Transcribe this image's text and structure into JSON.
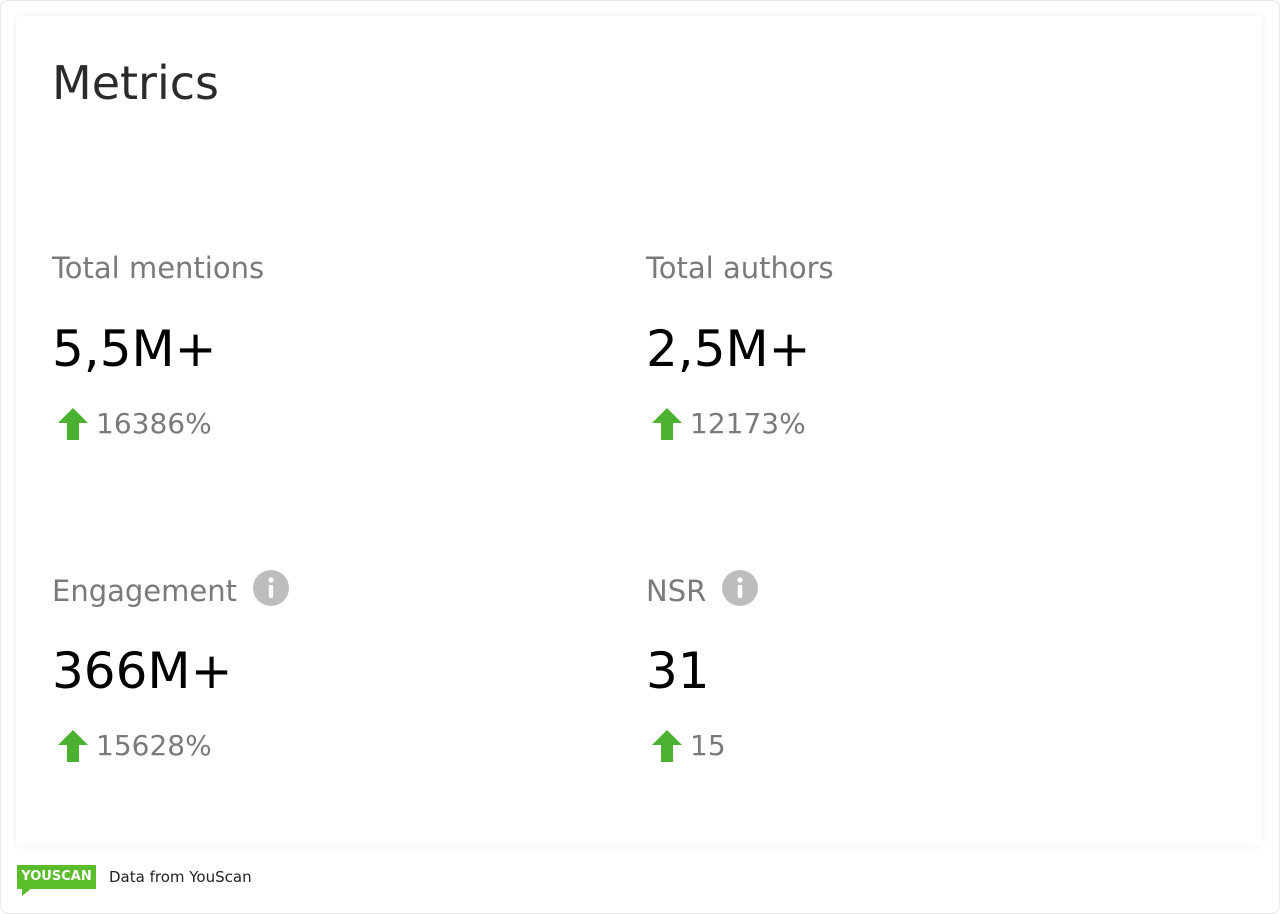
{
  "header": {
    "title": "Metrics"
  },
  "metrics": [
    {
      "label": "Total mentions",
      "value": "5,5M+",
      "change": "16386%"
    },
    {
      "label": "Total authors",
      "value": "2,5M+",
      "change": "12173%"
    },
    {
      "label": "Engagement",
      "value": "366M+",
      "change": "15628%"
    },
    {
      "label": "NSR",
      "value": "31",
      "change": "15"
    }
  ],
  "footer": {
    "logo": "YOUSCAN",
    "source": "Data from YouScan"
  }
}
